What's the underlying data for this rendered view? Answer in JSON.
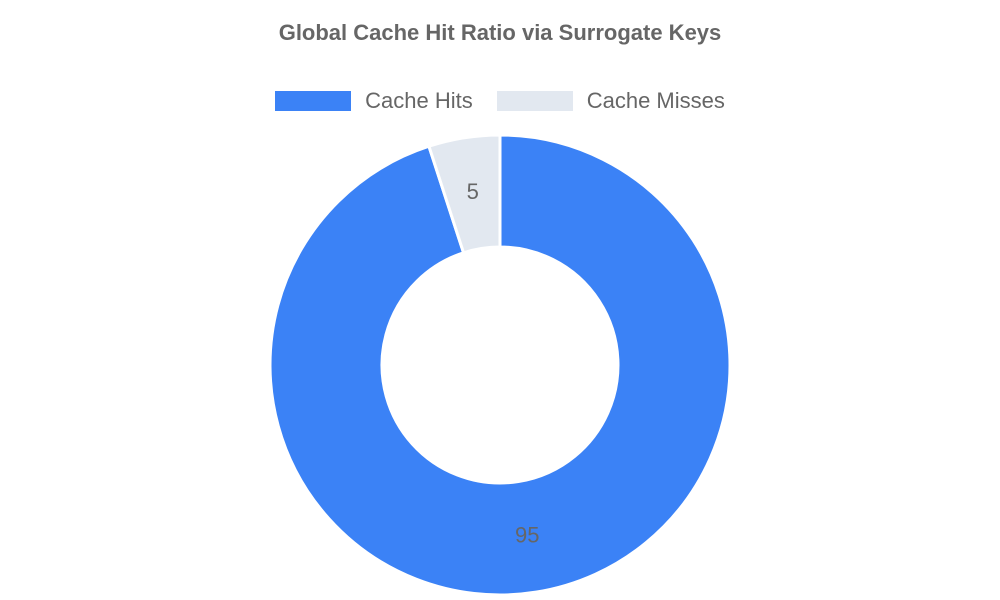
{
  "chart_data": {
    "type": "doughnut",
    "title": "Global Cache Hit Ratio via Surrogate Keys",
    "categories": [
      "Cache Hits",
      "Cache Misses"
    ],
    "values": [
      95,
      5
    ],
    "colors": [
      "#3b82f6",
      "#e2e8f0"
    ],
    "data_labels": [
      "95",
      "5"
    ],
    "legend_position": "top"
  }
}
